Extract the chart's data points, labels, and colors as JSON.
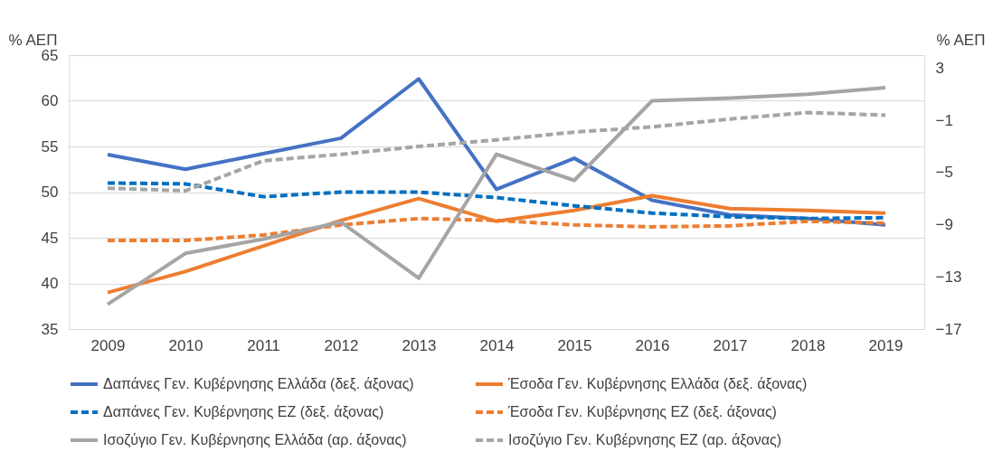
{
  "chart_data": {
    "type": "line",
    "ylabel": "% ΑΕΠ",
    "y2label": "% ΑΕΠ",
    "categories": [
      "2009",
      "2010",
      "2011",
      "2012",
      "2013",
      "2014",
      "2015",
      "2016",
      "2017",
      "2018",
      "2019"
    ],
    "series": [
      {
        "name": "Δαπάνες Γεν. Κυβέρνησης Ελλάδα (δεξ. άξονας)",
        "color": "#4472c4",
        "line_style": "solid",
        "values": [
          54.1,
          52.5,
          54.2,
          55.9,
          62.4,
          50.3,
          53.7,
          49.1,
          47.5,
          47.1,
          46.4
        ]
      },
      {
        "name": "Έσοδα Γεν. Κυβέρνησης Ελλάδα (δεξ. άξονας)",
        "color": "#ed7d31",
        "line_style": "solid",
        "values": [
          39.0,
          41.3,
          44.1,
          46.9,
          49.3,
          46.8,
          48.0,
          49.6,
          48.2,
          48.0,
          47.7
        ]
      },
      {
        "name": "Δαπάνες Γεν. Κυβέρνησης ΕΖ (δεξ. άξονας)",
        "color": "#0070c0",
        "line_style": "dashed",
        "values": [
          51.0,
          50.9,
          49.5,
          50.0,
          50.0,
          49.4,
          48.5,
          47.7,
          47.3,
          47.1,
          47.2
        ]
      },
      {
        "name": "Έσοδα Γεν. Κυβέρνησης ΕΖ (δεξ. άξονας)",
        "color": "#ed7d31",
        "line_style": "dashed",
        "values": [
          44.7,
          44.7,
          45.3,
          46.4,
          47.1,
          46.9,
          46.4,
          46.2,
          46.3,
          46.8,
          46.6
        ]
      },
      {
        "name": "Ισοζύγιο Γεν. Κυβέρνησης Ελλάδα (αρ. άξονας)",
        "color": "#a5a5a5",
        "line_style": "solid",
        "axis": "y2",
        "values": [
          -15.1,
          -11.2,
          -10.1,
          -8.8,
          -13.1,
          -3.6,
          -5.6,
          0.5,
          0.7,
          1.0,
          1.5
        ]
      },
      {
        "name": "Ισοζύγιο Γεν. Κυβέρνησης ΕΖ (αρ. άξονας)",
        "color": "#a5a5a5",
        "line_style": "dashed",
        "axis": "y2",
        "values": [
          -6.2,
          -6.4,
          -4.1,
          -3.6,
          -3.0,
          -2.5,
          -1.9,
          -1.5,
          -0.9,
          -0.4,
          -0.6
        ]
      }
    ],
    "ylim": [
      35,
      65
    ],
    "yticks": [
      35,
      40,
      45,
      50,
      55,
      60,
      65
    ],
    "y2lim": [
      -17,
      4
    ],
    "y2ticks": [
      -17,
      -13,
      -9,
      -5,
      -1,
      3
    ],
    "grid": "y",
    "legend": "bottom"
  }
}
